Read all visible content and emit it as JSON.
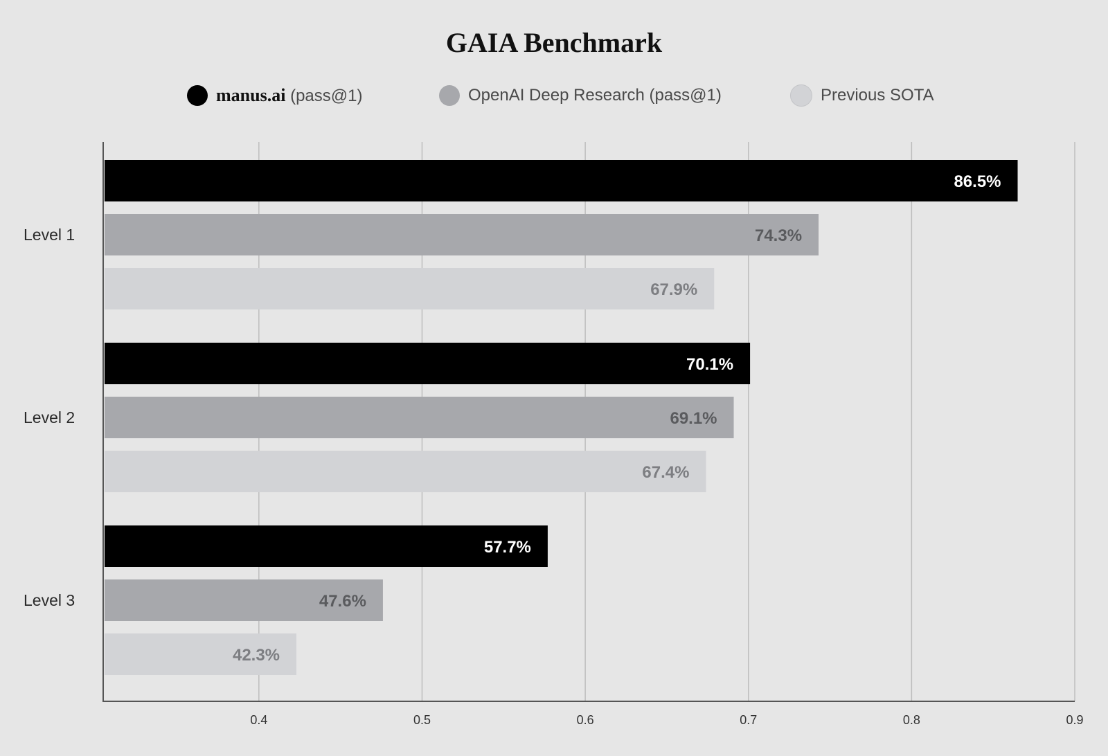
{
  "chart_data": {
    "type": "bar",
    "orientation": "horizontal",
    "title": "GAIA Benchmark",
    "categories": [
      "Level 1",
      "Level 2",
      "Level 3"
    ],
    "series": [
      {
        "name": "manus.ai (pass@1)",
        "name_lead": "manus.ai",
        "name_rest": " (pass@1)",
        "color": "#000000",
        "label_color": "#ffffff",
        "values": [
          0.865,
          0.701,
          0.577
        ],
        "labels": [
          "86.5%",
          "70.1%",
          "57.7%"
        ]
      },
      {
        "name": "OpenAI Deep Research (pass@1)",
        "color": "#a7a8ac",
        "label_color": "#5a5b5e",
        "values": [
          0.743,
          0.691,
          0.476
        ],
        "labels": [
          "74.3%",
          "69.1%",
          "47.6%"
        ]
      },
      {
        "name": "Previous SOTA",
        "color": "#d2d3d6",
        "label_color": "#7d7e82",
        "values": [
          0.679,
          0.674,
          0.423
        ],
        "labels": [
          "67.9%",
          "67.4%",
          "42.3%"
        ]
      }
    ],
    "xlim": [
      0.305,
      0.9
    ],
    "xticks": [
      0.4,
      0.5,
      0.6,
      0.7,
      0.8,
      0.9
    ],
    "xtick_labels": [
      "0.4",
      "0.5",
      "0.6",
      "0.7",
      "0.8",
      "0.9"
    ],
    "grid": true,
    "legend_position": "top-center"
  }
}
